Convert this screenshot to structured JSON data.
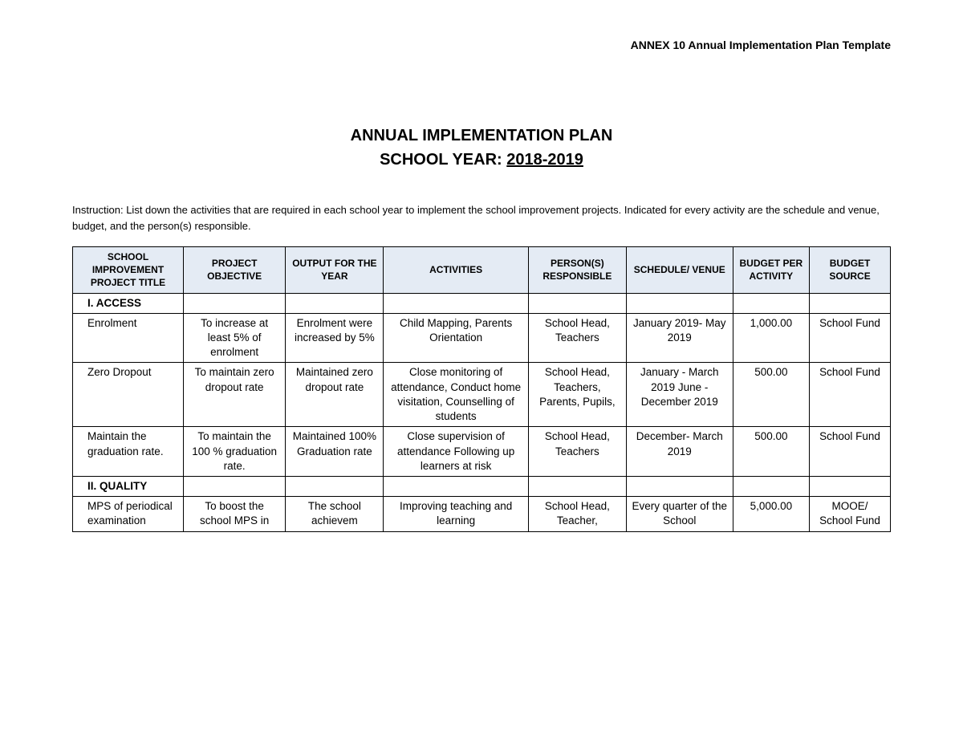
{
  "header_text": "ANNEX 10 Annual Implementation Plan Template",
  "title_line1": "ANNUAL IMPLEMENTATION PLAN",
  "title_line2_label": "SCHOOL YEAR: ",
  "title_line2_year": "2018-2019",
  "instruction": "Instruction: List down the activities that are required in each school year to implement the school improvement projects. Indicated for every activity are the schedule and venue, budget, and the person(s) responsible.",
  "table": {
    "header_bg": "#e4ebf4",
    "border_color": "#000000",
    "columns": [
      "SCHOOL IMPROVEMENT PROJECT TITLE",
      "PROJECT OBJECTIVE",
      "OUTPUT FOR THE YEAR",
      "ACTIVITIES",
      "PERSON(S) RESPONSIBLE",
      "SCHEDULE/ VENUE",
      "BUDGET PER ACTIVITY",
      "BUDGET SOURCE"
    ],
    "rows": [
      {
        "type": "section",
        "c0": "I. ACCESS",
        "c1": "",
        "c2": "",
        "c3": "",
        "c4": "",
        "c5": "",
        "c6": "",
        "c7": ""
      },
      {
        "type": "data",
        "c0": "Enrolment",
        "c1": "To increase at least 5% of enrolment",
        "c2": "Enrolment were increased by 5%",
        "c3": "Child Mapping, Parents Orientation",
        "c4": "School Head, Teachers",
        "c5": "January 2019- May 2019",
        "c6": "1,000.00",
        "c7": "School Fund"
      },
      {
        "type": "data",
        "c0": "Zero Dropout",
        "c1": "To maintain zero dropout rate",
        "c2": "Maintained zero dropout rate",
        "c3": "Close monitoring of attendance, Conduct home visitation, Counselling of students",
        "c4": "School Head, Teachers, Parents, Pupils,",
        "c5": "January - March 2019 June -December 2019",
        "c6": "500.00",
        "c7": "School Fund"
      },
      {
        "type": "data",
        "c0": "Maintain the graduation rate.",
        "c1": "To maintain the 100 % graduation rate.",
        "c2": "Maintained 100% Graduation rate",
        "c3": "Close supervision of attendance Following up learners at risk",
        "c4": "School Head, Teachers",
        "c5": "December- March 2019",
        "c6": "500.00",
        "c7": "School Fund"
      },
      {
        "type": "section",
        "c0": "II. QUALITY",
        "c1": "",
        "c2": "",
        "c3": "",
        "c4": "",
        "c5": "",
        "c6": "",
        "c7": ""
      },
      {
        "type": "data",
        "c0": "MPS of periodical examination",
        "c1": "To boost  the school MPS in",
        "c2": "The school achievem",
        "c3": "Improving teaching and learning",
        "c4": "School Head, Teacher,",
        "c5": "Every quarter of the School",
        "c6": "5,000.00",
        "c7": "MOOE/ School Fund"
      }
    ]
  }
}
